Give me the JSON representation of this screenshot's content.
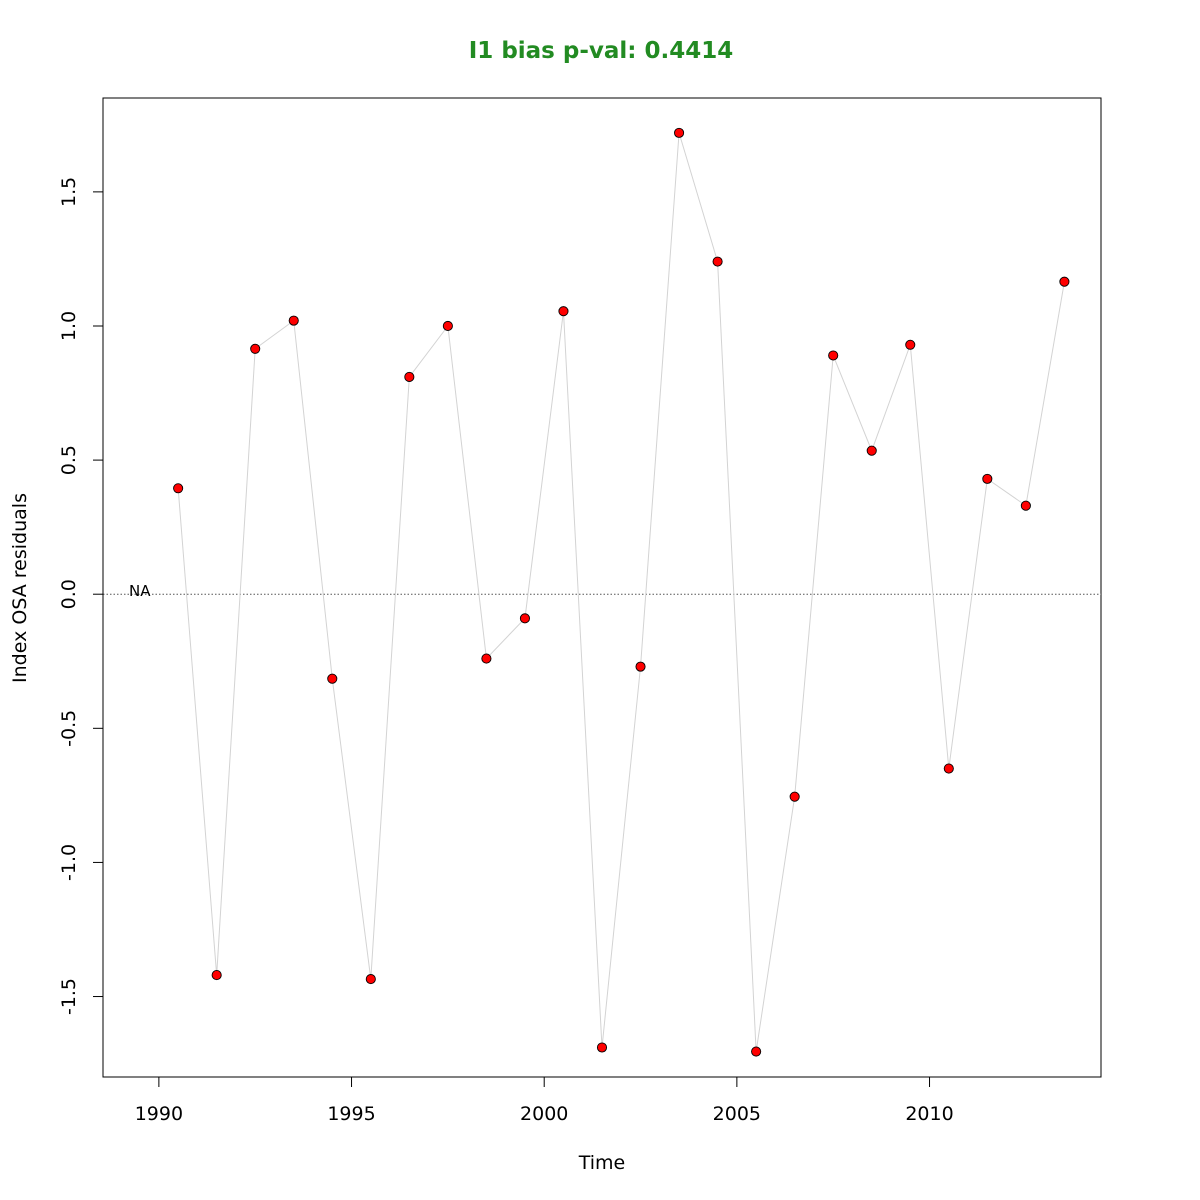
{
  "chart_data": {
    "type": "line",
    "title": "I1 bias p-val: 0.4414",
    "title_color": "#228B22",
    "xlabel": "Time",
    "ylabel": "Index OSA residuals",
    "xlim": [
      1988.55,
      2014.45
    ],
    "ylim": [
      -1.8,
      1.85
    ],
    "x_ticks": [
      1990,
      1995,
      2000,
      2005,
      2010
    ],
    "y_ticks": [
      -1.5,
      -1.0,
      -0.5,
      0.0,
      0.5,
      1.0,
      1.5
    ],
    "x_tick_labels": [
      "1990",
      "1995",
      "2000",
      "2005",
      "2010"
    ],
    "y_tick_labels": [
      "-1.5",
      "-1.0",
      "-0.5",
      "0.0",
      "0.5",
      "1.0",
      "1.5"
    ],
    "grid": false,
    "reference_line": 0,
    "annotation": "NA",
    "series": [
      {
        "line_color": "#d3d3d3",
        "point_fill": "#ff0000",
        "point_edge": "#000000",
        "x": [
          1990.5,
          1991.5,
          1992.5,
          1993.5,
          1994.5,
          1995.5,
          1996.5,
          1997.5,
          1998.5,
          1999.5,
          2000.5,
          2001.5,
          2002.5,
          2003.5,
          2004.5,
          2005.5,
          2006.5,
          2007.5,
          2008.5,
          2009.5,
          2010.5,
          2011.5,
          2012.5,
          2013.5
        ],
        "y": [
          0.395,
          -1.42,
          0.915,
          1.02,
          -0.315,
          -1.435,
          0.81,
          1.0,
          -0.24,
          -0.09,
          1.055,
          -1.69,
          -0.27,
          1.72,
          1.24,
          -1.705,
          -0.755,
          0.89,
          0.535,
          0.93,
          -0.65,
          0.43,
          0.33,
          1.165
        ]
      }
    ]
  }
}
